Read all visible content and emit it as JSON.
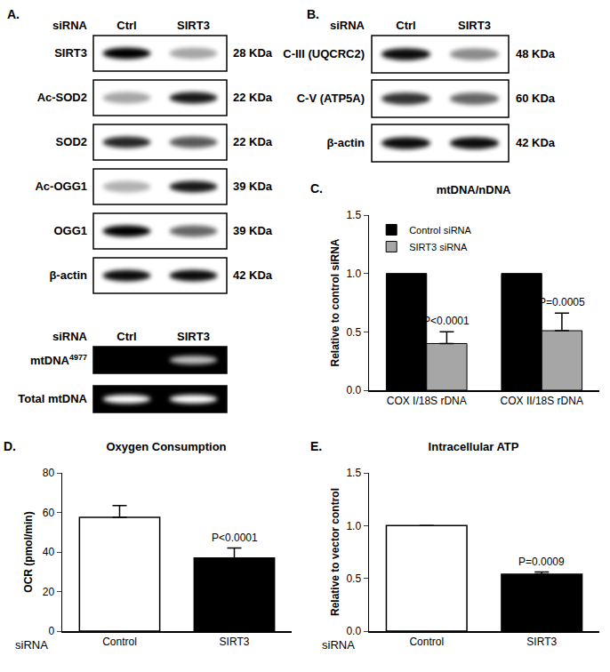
{
  "blots": [
    {
      "panel_label": "A.",
      "dark": false,
      "header": {
        "label": "siRNA",
        "lanes": [
          "Ctrl",
          "SIRT3"
        ]
      },
      "rows": [
        {
          "label": "SIRT3",
          "size": "28 KDa",
          "band_strength": [
            1.0,
            0.35
          ]
        },
        {
          "label": "Ac-SOD2",
          "size": "22 KDa",
          "band_strength": [
            0.35,
            0.9
          ]
        },
        {
          "label": "SOD2",
          "size": "22 KDa",
          "band_strength": [
            0.85,
            0.65
          ]
        },
        {
          "label": "Ac-OGG1",
          "size": "39 KDa",
          "band_strength": [
            0.3,
            0.9
          ]
        },
        {
          "label": "OGG1",
          "size": "39 KDa",
          "band_strength": [
            1.0,
            0.6
          ]
        },
        {
          "label": "β-actin",
          "size": "42 KDa",
          "band_strength": [
            0.95,
            0.95
          ]
        }
      ]
    },
    {
      "dark": true,
      "header": {
        "label": "siRNA",
        "lanes": [
          "Ctrl",
          "SIRT3"
        ]
      },
      "rows": [
        {
          "label": "mtDNA",
          "superscript": "4977",
          "band_strength": [
            0.0,
            0.75
          ]
        },
        {
          "label": "Total mtDNA",
          "band_strength": [
            1.0,
            1.0
          ]
        }
      ]
    },
    {
      "panel_label": "B.",
      "dark": false,
      "header": {
        "label": "siRNA",
        "lanes": [
          "Ctrl",
          "SIRT3"
        ]
      },
      "rows": [
        {
          "label": "C-III (UQCRC2)",
          "size": "48 KDa",
          "band_strength": [
            0.95,
            0.45
          ]
        },
        {
          "label": "C-V (ATP5A)",
          "size": "60 KDa",
          "band_strength": [
            0.8,
            0.6
          ]
        },
        {
          "label": "β-actin",
          "size": "42 KDa",
          "band_strength": [
            0.95,
            0.95
          ]
        }
      ]
    }
  ],
  "chart_data": [
    {
      "panel_label": "C.",
      "type": "bar",
      "title": "mtDNA/nDNA",
      "y_label": "Relative to control siRNA",
      "categories": [
        "COX I/18S rDNA",
        "COX II/18S rDNA"
      ],
      "series": [
        {
          "name": "Control siRNA",
          "color": "#000000",
          "values": [
            1.0,
            1.0
          ]
        },
        {
          "name": "SIRT3 siRNA",
          "color": "#a6a6a6",
          "values": [
            0.4,
            0.51
          ],
          "errors": [
            0.1,
            0.15
          ]
        }
      ],
      "annotations": [
        {
          "category": "COX I/18S rDNA",
          "series": "SIRT3 siRNA",
          "text": "P<0.0001"
        },
        {
          "category": "COX II/18S rDNA",
          "series": "SIRT3 siRNA",
          "text": "P=0.0005"
        }
      ],
      "ylim": [
        0,
        1.5
      ],
      "yticks": [
        {
          "value": 0,
          "label": "0.0"
        },
        {
          "value": 0.5,
          "label": "0.5"
        },
        {
          "value": 1,
          "label": "1.0"
        },
        {
          "value": 1.5,
          "label": "1.5"
        }
      ],
      "legend": "upper left",
      "grid": false
    },
    {
      "panel_label": "D.",
      "type": "bar",
      "title": "Oxygen Consumption",
      "x_label": "siRNA",
      "y_label": "OCR (pmol/min)",
      "categories": [
        "Control",
        "SIRT3"
      ],
      "values": [
        57.5,
        37
      ],
      "errors": [
        6,
        5
      ],
      "colors": [
        "#ffffff",
        "#000000"
      ],
      "annotations": [
        {
          "category": "SIRT3",
          "text": "P<0.0001"
        }
      ],
      "ylim": [
        0,
        80
      ],
      "yticks": [
        0,
        20,
        40,
        60,
        80
      ],
      "grid": false
    },
    {
      "panel_label": "E.",
      "type": "bar",
      "title": "Intracellular ATP",
      "x_label": "siRNA",
      "y_label": "Relative to vector control",
      "categories": [
        "Control",
        "SIRT3"
      ],
      "values": [
        1.0,
        0.54
      ],
      "errors": [
        0,
        0.02
      ],
      "colors": [
        "#ffffff",
        "#000000"
      ],
      "annotations": [
        {
          "category": "SIRT3",
          "text": "P=0.0009"
        }
      ],
      "ylim": [
        0,
        1.5
      ],
      "yticks": [
        {
          "value": 0,
          "label": "0.0"
        },
        {
          "value": 0.5,
          "label": "0.5"
        },
        {
          "value": 1,
          "label": "1.0"
        },
        {
          "value": 1.5,
          "label": "1.5"
        }
      ],
      "grid": false
    }
  ]
}
